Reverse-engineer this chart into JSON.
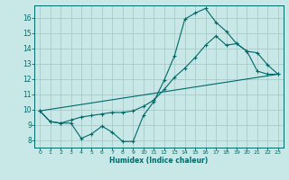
{
  "xlabel": "Humidex (Indice chaleur)",
  "background_color": "#c8e8e8",
  "grid_color": "#aacaca",
  "line_color": "#006868",
  "xlim": [
    -0.5,
    23.5
  ],
  "ylim": [
    7.5,
    16.8
  ],
  "xticks": [
    0,
    1,
    2,
    3,
    4,
    5,
    6,
    7,
    8,
    9,
    10,
    11,
    12,
    13,
    14,
    15,
    16,
    17,
    18,
    19,
    20,
    21,
    22,
    23
  ],
  "yticks": [
    8,
    9,
    10,
    11,
    12,
    13,
    14,
    15,
    16
  ],
  "line1_x": [
    0,
    1,
    2,
    3,
    4,
    5,
    6,
    7,
    8,
    9,
    10,
    11,
    12,
    13,
    14,
    15,
    16,
    17,
    18,
    19,
    20,
    21,
    22,
    23
  ],
  "line1_y": [
    9.9,
    9.2,
    9.1,
    9.1,
    8.1,
    8.4,
    8.9,
    8.5,
    7.9,
    7.9,
    9.6,
    10.5,
    11.9,
    13.5,
    15.9,
    16.3,
    16.6,
    15.7,
    15.1,
    14.3,
    13.8,
    13.7,
    12.9,
    12.3
  ],
  "line2_x": [
    0,
    1,
    2,
    3,
    4,
    5,
    6,
    7,
    8,
    9,
    10,
    11,
    12,
    13,
    14,
    15,
    16,
    17,
    18,
    19,
    20,
    21,
    22,
    23
  ],
  "line2_y": [
    9.9,
    9.2,
    9.1,
    9.3,
    9.5,
    9.6,
    9.7,
    9.8,
    9.8,
    9.9,
    10.2,
    10.6,
    11.3,
    12.1,
    12.7,
    13.4,
    14.2,
    14.8,
    14.2,
    14.3,
    13.8,
    12.5,
    12.3,
    12.3
  ],
  "line3_x": [
    0,
    23
  ],
  "line3_y": [
    9.9,
    12.3
  ]
}
